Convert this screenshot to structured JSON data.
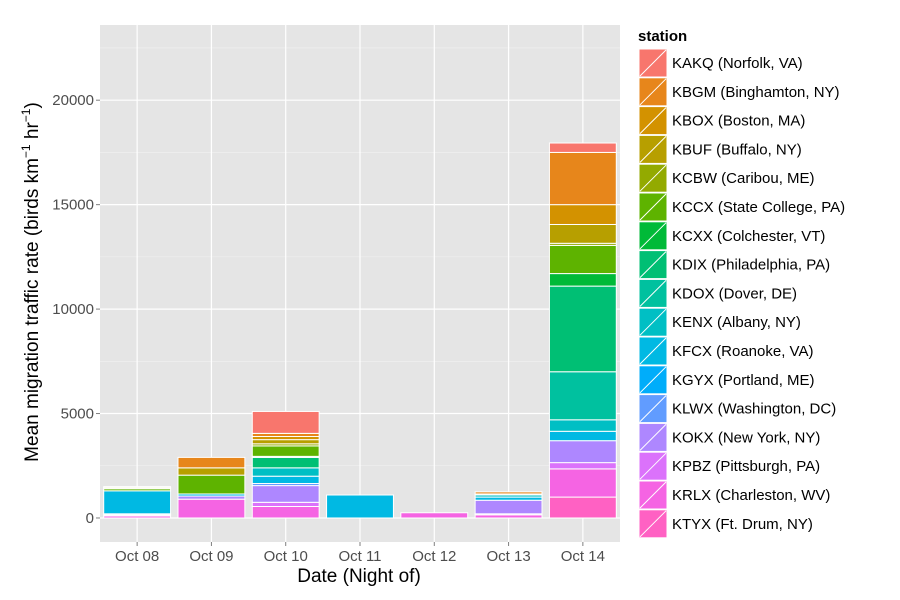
{
  "chart_data": {
    "type": "bar",
    "stacked": true,
    "title": "",
    "xlabel": "Date (Night of)",
    "ylabel_prefix": "Mean migration traffic rate (birds km",
    "ylabel_sup1": "−1",
    "ylabel_mid": " hr",
    "ylabel_sup2": "−1",
    "ylabel_suffix": ")",
    "ylim": [
      -1150,
      23600
    ],
    "yticks": [
      0,
      5000,
      10000,
      15000,
      20000
    ],
    "ytick_labels": [
      "0",
      "5000",
      "10000",
      "15000",
      "20000"
    ],
    "categories": [
      "Oct 08",
      "Oct 09",
      "Oct 10",
      "Oct 11",
      "Oct 12",
      "Oct 13",
      "Oct 14"
    ],
    "legend_title": "station",
    "legend_position": "right",
    "series": [
      {
        "name": "KAKQ (Norfolk, VA)",
        "color": "#F8766D",
        "values": [
          0,
          0,
          1050,
          0,
          0,
          0,
          450
        ]
      },
      {
        "name": "KBGM (Binghamton, NY)",
        "color": "#E7861B",
        "values": [
          0,
          500,
          150,
          0,
          0,
          100,
          2500
        ]
      },
      {
        "name": "KBOX (Boston, MA)",
        "color": "#D39200",
        "values": [
          0,
          0,
          150,
          0,
          0,
          0,
          950
        ]
      },
      {
        "name": "KBUF (Buffalo, NY)",
        "color": "#B79F00",
        "values": [
          50,
          350,
          200,
          0,
          0,
          0,
          900
        ]
      },
      {
        "name": "KCBW (Caribou, ME)",
        "color": "#93AA00",
        "values": [
          50,
          0,
          100,
          0,
          0,
          0,
          100
        ]
      },
      {
        "name": "KCCX (State College, PA)",
        "color": "#5EB300",
        "values": [
          100,
          900,
          500,
          0,
          0,
          0,
          1350
        ]
      },
      {
        "name": "KCXX (Colchester, VT)",
        "color": "#00BA38",
        "values": [
          0,
          0,
          50,
          0,
          0,
          0,
          600
        ]
      },
      {
        "name": "KDIX (Philadelphia, PA)",
        "color": "#00BF74",
        "values": [
          0,
          0,
          500,
          0,
          0,
          0,
          4100
        ]
      },
      {
        "name": "KDOX (Dover, DE)",
        "color": "#00C19F",
        "values": [
          0,
          0,
          0,
          0,
          0,
          50,
          2300
        ]
      },
      {
        "name": "KENX (Albany, NY)",
        "color": "#00BFC4",
        "values": [
          0,
          0,
          400,
          0,
          0,
          100,
          550
        ]
      },
      {
        "name": "KFCX (Roanoke, VA)",
        "color": "#00B9E3",
        "values": [
          1100,
          100,
          350,
          1100,
          0,
          150,
          450
        ]
      },
      {
        "name": "KGYX (Portland, ME)",
        "color": "#00ADFA",
        "values": [
          0,
          0,
          0,
          0,
          0,
          0,
          0
        ]
      },
      {
        "name": "KLWX (Washington, DC)",
        "color": "#619CFF",
        "values": [
          50,
          0,
          100,
          0,
          0,
          0,
          0
        ]
      },
      {
        "name": "KOKX (New York, NY)",
        "color": "#AE87FF",
        "values": [
          0,
          150,
          800,
          0,
          0,
          650,
          1050
        ]
      },
      {
        "name": "KPBZ (Pittsburgh, PA)",
        "color": "#DB72FB",
        "values": [
          50,
          0,
          200,
          0,
          0,
          50,
          300
        ]
      },
      {
        "name": "KRLX (Charleston, WV)",
        "color": "#F564E3",
        "values": [
          100,
          900,
          550,
          0,
          250,
          150,
          1350
        ]
      },
      {
        "name": "KTYX (Ft. Drum, NY)",
        "color": "#FF61C3",
        "values": [
          0,
          0,
          0,
          0,
          0,
          0,
          1000
        ]
      }
    ]
  }
}
